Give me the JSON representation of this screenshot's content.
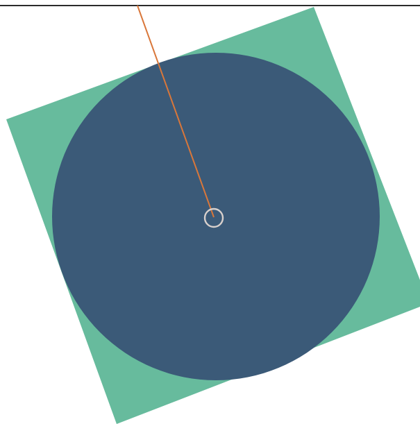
{
  "colors": {
    "background": "#ffffff",
    "frame_line": "#2b2b2b",
    "square_fill": "#67bb9d",
    "circle_fill": "#3b5a78",
    "pointer_line": "#d9773a",
    "center_marker": "#d8d0cc"
  }
}
